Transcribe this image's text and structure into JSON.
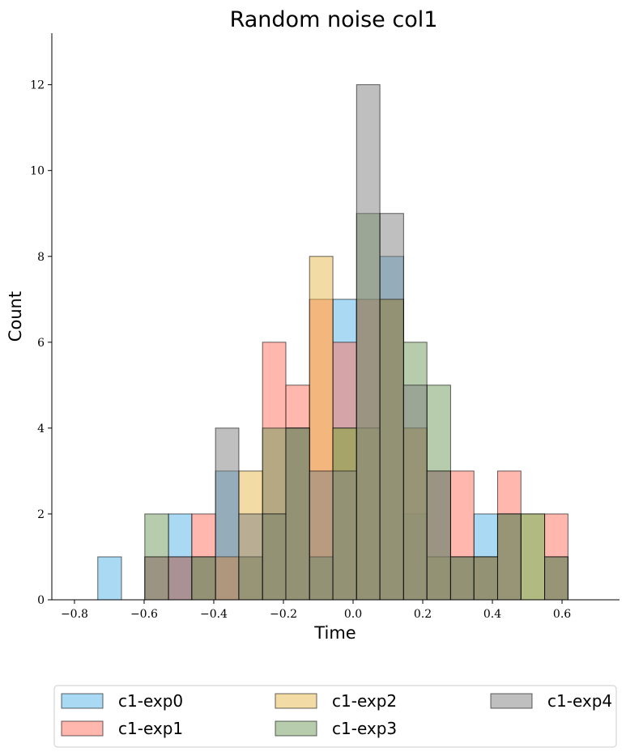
{
  "chart_data": {
    "type": "histogram",
    "title": "Random noise col1",
    "xlabel": "Time",
    "ylabel": "Count",
    "xlim": [
      -0.865,
      0.765
    ],
    "ylim": [
      0,
      13.2
    ],
    "xticks": [
      -0.8,
      -0.6,
      -0.4,
      -0.2,
      0.0,
      0.2,
      0.4,
      0.6
    ],
    "xtick_labels": [
      "−0.8",
      "−0.6",
      "−0.4",
      "−0.2",
      "0.0",
      "0.2",
      "0.4",
      "0.6"
    ],
    "yticks": [
      0,
      2,
      4,
      6,
      8,
      10,
      12
    ],
    "ytick_labels": [
      "0",
      "2",
      "4",
      "6",
      "8",
      "10",
      "12"
    ],
    "bin_edges": [
      -0.733,
      -0.665,
      -0.598,
      -0.53,
      -0.463,
      -0.395,
      -0.328,
      -0.26,
      -0.193,
      -0.125,
      -0.058,
      0.01,
      0.077,
      0.145,
      0.212,
      0.28,
      0.347,
      0.415,
      0.482,
      0.55,
      0.617
    ],
    "series": [
      {
        "name": "c1-exp0",
        "color": "#56B4E9",
        "values": [
          1,
          0,
          0,
          2,
          1,
          3,
          0,
          2,
          4,
          1,
          7,
          4,
          8,
          2,
          1,
          1,
          2,
          0,
          0,
          0
        ]
      },
      {
        "name": "c1-exp1",
        "color": "#FF6F5E",
        "values": [
          0,
          0,
          1,
          1,
          2,
          1,
          1,
          6,
          5,
          7,
          6,
          7,
          7,
          4,
          3,
          3,
          1,
          3,
          0,
          2
        ]
      },
      {
        "name": "c1-exp2",
        "color": "#E8B84E",
        "values": [
          0,
          0,
          0,
          0,
          1,
          1,
          3,
          2,
          4,
          8,
          4,
          4,
          7,
          4,
          1,
          1,
          1,
          2,
          2,
          1
        ]
      },
      {
        "name": "c1-exp3",
        "color": "#6F9A5A",
        "values": [
          0,
          0,
          2,
          0,
          1,
          0,
          1,
          4,
          4,
          1,
          4,
          9,
          7,
          6,
          5,
          1,
          1,
          2,
          2,
          1
        ]
      },
      {
        "name": "c1-exp4",
        "color": "#808080",
        "values": [
          0,
          0,
          1,
          1,
          1,
          4,
          2,
          2,
          4,
          3,
          3,
          12,
          9,
          5,
          3,
          1,
          1,
          2,
          0,
          1
        ]
      }
    ],
    "legend_position": "below plot",
    "legend_columns": 3,
    "grid": false
  }
}
